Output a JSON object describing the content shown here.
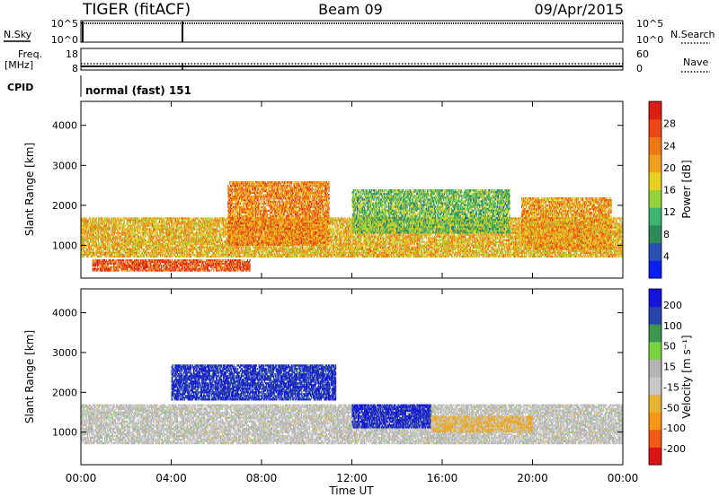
{
  "header": {
    "radar": "TIGER (fitACF)",
    "beam": "Beam 09",
    "date": "09/Apr/2015"
  },
  "sky_panel": {
    "left_label": "N.Sky",
    "left_ticks": [
      "10^5",
      "10^0"
    ],
    "right_ticks": [
      "10^5",
      "10^0"
    ],
    "right_label": "N.Search"
  },
  "freq_panel": {
    "left_label_1": "Freq.",
    "left_label_2": "[MHz]",
    "left_ticks": [
      "18",
      "8"
    ],
    "right_ticks": [
      "60",
      "0"
    ],
    "right_label": "Nave"
  },
  "cpid": {
    "label": "CPID",
    "value": "normal (fast) 151"
  },
  "colors": {
    "power": [
      "#0a1ef0",
      "#2850b4",
      "#2e8b57",
      "#3cb46e",
      "#96d23c",
      "#e6d21e",
      "#f0a01e",
      "#f07814",
      "#eb4614",
      "#dc1e14"
    ],
    "velocity": [
      "#dc1414",
      "#f05a14",
      "#f59614",
      "#e6b432",
      "#c8c8c8",
      "#b4b4b4",
      "#78d23c",
      "#3c9650",
      "#2846aa",
      "#1414dc"
    ]
  },
  "chart_data": [
    {
      "type": "heatmap",
      "name": "power",
      "ylabel": "Slant Range [km]",
      "y_ticks": [
        "1000",
        "2000",
        "3000",
        "4000"
      ],
      "ylim": [
        180,
        4600
      ],
      "xlim": [
        "00:00",
        "24:00"
      ],
      "colorbar": {
        "label": "Power [dB]",
        "ticks": [
          "4",
          "8",
          "12",
          "16",
          "20",
          "24",
          "28"
        ],
        "range": [
          0,
          32
        ]
      },
      "regions": [
        {
          "desc": "main band",
          "t": [
            0,
            24
          ],
          "r": [
            700,
            1700
          ],
          "value_db": 20
        },
        {
          "desc": "lower echo",
          "t": [
            0.5,
            7.5
          ],
          "r": [
            350,
            650
          ],
          "value_db": 28
        },
        {
          "desc": "rising arc",
          "t": [
            6.5,
            11
          ],
          "r": [
            1000,
            2600
          ],
          "value_db": 24
        },
        {
          "desc": "afternoon band",
          "t": [
            12,
            19
          ],
          "r": [
            1300,
            2400
          ],
          "value_db": 12
        },
        {
          "desc": "evening arc",
          "t": [
            19.5,
            23.5
          ],
          "r": [
            900,
            2200
          ],
          "value_db": 22
        }
      ]
    },
    {
      "type": "heatmap",
      "name": "velocity",
      "ylabel": "Slant Range [km]",
      "y_ticks": [
        "1000",
        "2000",
        "3000",
        "4000"
      ],
      "ylim": [
        180,
        4600
      ],
      "xlim": [
        "00:00",
        "24:00"
      ],
      "colorbar": {
        "label": "Velocity [m s⁻¹]",
        "ticks": [
          "200",
          "100",
          "50",
          "15",
          "-15",
          "-50",
          "-100",
          "-200"
        ],
        "range": [
          -250,
          250
        ]
      },
      "regions": [
        {
          "desc": "main band",
          "t": [
            0,
            24
          ],
          "r": [
            700,
            1700
          ],
          "value_ms": 0
        },
        {
          "desc": "morning positive",
          "t": [
            4,
            11.3
          ],
          "r": [
            1800,
            2700
          ],
          "value_ms": 220
        },
        {
          "desc": "afternoon positive",
          "t": [
            12,
            15.5
          ],
          "r": [
            1100,
            1700
          ],
          "value_ms": 230
        },
        {
          "desc": "afternoon negative",
          "t": [
            15.5,
            20
          ],
          "r": [
            1000,
            1400
          ],
          "value_ms": -80
        }
      ]
    }
  ],
  "x_ticks": [
    "00:00",
    "04:00",
    "08:00",
    "12:00",
    "16:00",
    "20:00",
    "00:00"
  ],
  "xlabel": "Time UT"
}
